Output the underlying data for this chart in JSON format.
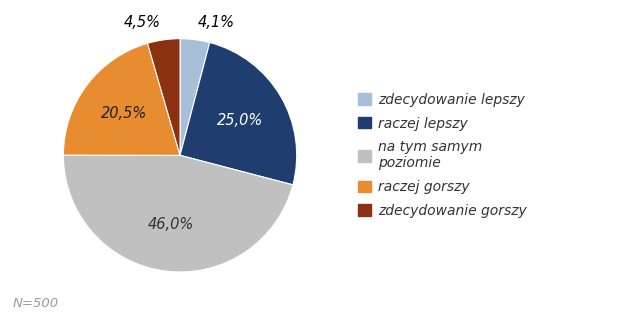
{
  "labels": [
    "zdecydowanie lepszy",
    "raczej lepszy",
    "na tym samym\npoziomie",
    "raczej gorszy",
    "zdecydowanie gorszy"
  ],
  "values": [
    4.1,
    25.0,
    46.0,
    20.5,
    4.5
  ],
  "colors": [
    "#a8bfd8",
    "#1f3d6e",
    "#c0c0c0",
    "#e88c30",
    "#8b3010"
  ],
  "pct_labels": [
    "4,1%",
    "25,0%",
    "46,0%",
    "20,5%",
    "4,5%"
  ],
  "legend_labels": [
    "zdecydowanie lepszy",
    "raczej lepszy",
    "na tym samym\npoziomie",
    "raczej gorszy",
    "zdecydowanie gorszy"
  ],
  "note": "N=500",
  "startangle": 90,
  "label_fontsize": 10.5,
  "legend_fontsize": 10,
  "note_fontsize": 9.5
}
